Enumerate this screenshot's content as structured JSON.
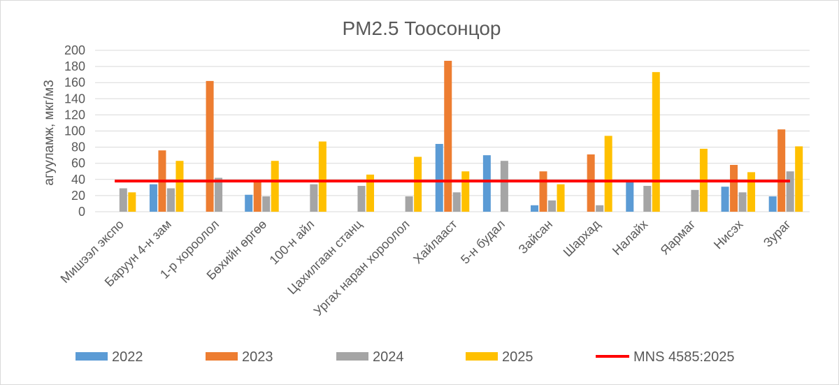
{
  "chart_data": {
    "type": "bar",
    "title": "PM2.5 Тоосонцор",
    "ylabel": "агууламж, мкг/м3",
    "xlabel": "",
    "ylim": [
      0,
      200
    ],
    "yticks": [
      0,
      20,
      40,
      60,
      80,
      100,
      120,
      140,
      160,
      180,
      200
    ],
    "grid": true,
    "legend_position": "bottom",
    "categories": [
      "Мишээл экспо",
      "Баруун 4-н зам",
      "1-р хороолол",
      "Бөхийн өргөө",
      "100-н айл",
      "Цахилгаан станц",
      "Ургах наран хороолол",
      "Хайлааст",
      "5-н будал",
      "Зайсан",
      "Шархад",
      "Налайх",
      "Яармаг",
      "Нисэх",
      "Зураг"
    ],
    "series": [
      {
        "name": "2022",
        "color": "#5b9bd5",
        "values": [
          null,
          34,
          null,
          21,
          null,
          null,
          null,
          84,
          70,
          8,
          null,
          37,
          null,
          31,
          19
        ]
      },
      {
        "name": "2023",
        "color": "#ed7d31",
        "values": [
          null,
          76,
          162,
          38,
          null,
          null,
          null,
          187,
          null,
          50,
          71,
          null,
          null,
          58,
          102
        ]
      },
      {
        "name": "2024",
        "color": "#a5a5a5",
        "values": [
          29,
          29,
          42,
          19,
          34,
          32,
          19,
          24,
          63,
          14,
          8,
          32,
          27,
          24,
          50
        ]
      },
      {
        "name": "2025",
        "color": "#ffc000",
        "values": [
          24,
          63,
          null,
          63,
          87,
          46,
          68,
          50,
          null,
          34,
          94,
          173,
          78,
          49,
          81
        ]
      }
    ],
    "reference_line": {
      "name": "MNS 4585:2025",
      "value": 38,
      "color": "#ff0000"
    }
  }
}
